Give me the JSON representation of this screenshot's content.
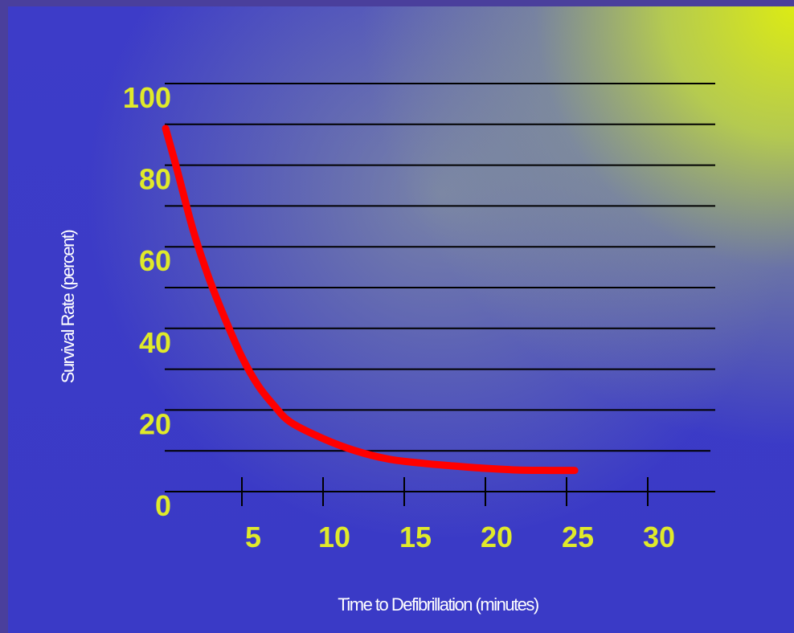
{
  "chart_data": {
    "type": "line",
    "xlabel": "Time to Defibrillation (minutes)",
    "ylabel": "Survival Rate (percent)",
    "xlim": [
      0,
      30
    ],
    "ylim": [
      0,
      100
    ],
    "x_ticks": [
      "5",
      "10",
      "15",
      "20",
      "25",
      "30"
    ],
    "y_ticks": [
      "0",
      "20",
      "40",
      "60",
      "80",
      "100"
    ],
    "grid": true,
    "series": [
      {
        "color": "#ff0000",
        "x": [
          0.3,
          1,
          2,
          3,
          4,
          5,
          6,
          7,
          8,
          10,
          12,
          14,
          16,
          18,
          20,
          22,
          24,
          25.5
        ],
        "y": [
          89,
          79,
          64,
          52,
          42,
          33,
          26,
          21,
          17,
          13,
          10,
          8,
          7,
          6.3,
          5.7,
          5.3,
          5.2,
          5.2
        ]
      }
    ]
  }
}
